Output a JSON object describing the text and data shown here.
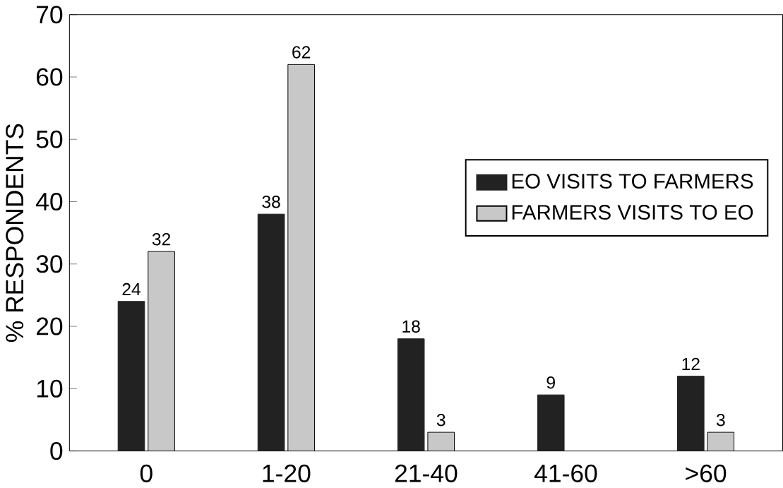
{
  "chart_data": {
    "type": "bar",
    "ylabel": "% RESPONDENTS",
    "categories": [
      "0",
      "1-20",
      "21-40",
      "41-60",
      ">60"
    ],
    "series": [
      {
        "name": "EO VISITS TO FARMERS",
        "color": "#222222",
        "values": [
          24,
          38,
          18,
          9,
          12
        ]
      },
      {
        "name": "FARMERS VISITS TO EO",
        "color": "#c8c8c8",
        "values": [
          32,
          62,
          3,
          null,
          3
        ]
      }
    ],
    "ylim": [
      0,
      70
    ],
    "yticks": [
      0,
      10,
      20,
      30,
      40,
      50,
      60,
      70
    ],
    "grid": false,
    "legend": "right",
    "data_labels": true
  }
}
